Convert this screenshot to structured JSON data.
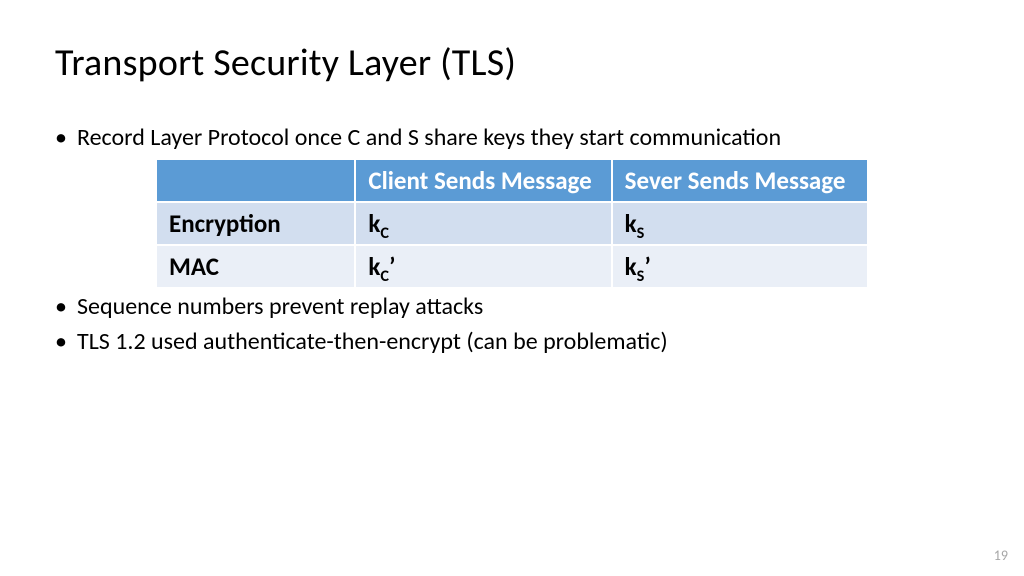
{
  "slide": {
    "title": "Transport Security Layer (TLS)",
    "bullets": {
      "b1": "Record Layer Protocol once C and S share keys they start communication",
      "b2": "Sequence numbers prevent replay attacks",
      "b3": "TLS 1.2 used authenticate-then-encrypt (can be problematic)"
    },
    "page_number": "19"
  },
  "table": {
    "type": "table",
    "column_widths_pct": [
      28,
      36,
      36
    ],
    "header_bg": "#5b9bd5",
    "header_fg": "#ffffff",
    "row_bg_alt": [
      "#d2deef",
      "#eaeff7"
    ],
    "row_label_fg": "#000000",
    "cell_fg": "#000000",
    "border_color": "#ffffff",
    "font_size_pt": 19,
    "columns": {
      "c0": "",
      "c1": "Client Sends Message",
      "c2": "Sever Sends Message"
    },
    "rows": {
      "r0": {
        "label": "Encryption",
        "c1_base": "k",
        "c1_sub": "C",
        "c1_sup": "",
        "c2_base": "k",
        "c2_sub": "S",
        "c2_sup": ""
      },
      "r1": {
        "label": "MAC",
        "c1_base": "k",
        "c1_sub": "C",
        "c1_sup": "’",
        "c2_base": "k",
        "c2_sub": "S",
        "c2_sup": "’"
      }
    }
  }
}
